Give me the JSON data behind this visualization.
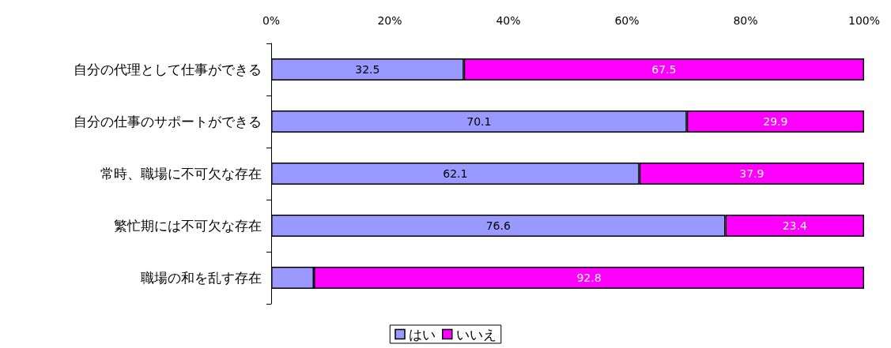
{
  "chart_data": {
    "type": "bar",
    "orientation": "horizontal",
    "stacked": true,
    "categories": [
      "自分の代理として仕事ができる",
      "自分の仕事のサポートができる",
      "常時、職場に不可欠な存在",
      "繁忙期には不可欠な存在",
      "職場の和を乱す存在"
    ],
    "series": [
      {
        "name": "はい",
        "color": "#9999ff",
        "values": [
          32.5,
          70.1,
          62.1,
          76.6,
          7.2
        ],
        "value_labels": [
          "32.5",
          "70.1",
          "62.1",
          "76.6",
          null
        ]
      },
      {
        "name": "いいえ",
        "color": "#ff00ff",
        "values": [
          67.5,
          29.9,
          37.9,
          23.4,
          92.8
        ],
        "value_labels": [
          "67.5",
          "29.9",
          "37.9",
          "23.4",
          "92.8"
        ]
      }
    ],
    "xlim": [
      0,
      100
    ],
    "xticks": [
      {
        "value": 0,
        "label": "0%"
      },
      {
        "value": 20,
        "label": "20%"
      },
      {
        "value": 40,
        "label": "40%"
      },
      {
        "value": 60,
        "label": "60%"
      },
      {
        "value": 80,
        "label": "80%"
      },
      {
        "value": 100,
        "label": "100%"
      }
    ],
    "grid": false,
    "legend": "bottom"
  }
}
